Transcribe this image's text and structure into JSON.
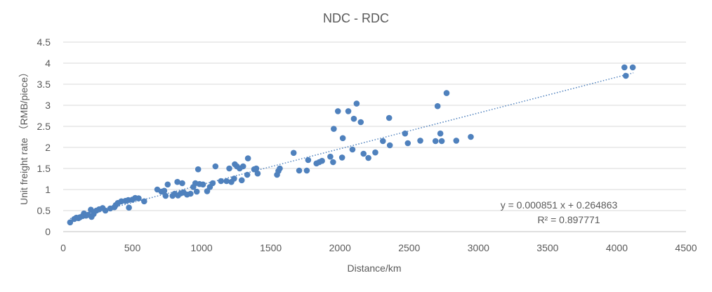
{
  "chart_data": {
    "type": "scatter",
    "title": "NDC - RDC",
    "xlabel": "Distance/km",
    "ylabel": "Unit freight rate （RMB/piece）",
    "xlim": [
      0,
      4500
    ],
    "ylim": [
      0,
      4.5
    ],
    "x_ticks": [
      "0",
      "500",
      "1000",
      "1500",
      "2000",
      "2500",
      "3000",
      "3500",
      "4000",
      "4500"
    ],
    "y_ticks": [
      "0",
      "0.5",
      "1",
      "1.5",
      "2",
      "2.5",
      "3",
      "3.5",
      "4",
      "4.5"
    ],
    "grid": "horizontal",
    "marker_color": "#4f81bd",
    "trendline": {
      "type": "linear",
      "slope": 0.000851,
      "intercept": 0.264863,
      "x_range": [
        50,
        4120
      ],
      "color": "#4f81bd",
      "style": "dotted",
      "equation": "y = 0.000851 x + 0.264863",
      "r2": "R² = 0.897771"
    },
    "series": [
      {
        "points": [
          [
            50,
            0.22
          ],
          [
            80,
            0.3
          ],
          [
            95,
            0.33
          ],
          [
            110,
            0.32
          ],
          [
            120,
            0.34
          ],
          [
            140,
            0.37
          ],
          [
            150,
            0.43
          ],
          [
            165,
            0.38
          ],
          [
            180,
            0.4
          ],
          [
            200,
            0.52
          ],
          [
            205,
            0.35
          ],
          [
            220,
            0.42
          ],
          [
            240,
            0.5
          ],
          [
            260,
            0.53
          ],
          [
            285,
            0.56
          ],
          [
            305,
            0.5
          ],
          [
            340,
            0.55
          ],
          [
            370,
            0.58
          ],
          [
            380,
            0.63
          ],
          [
            395,
            0.68
          ],
          [
            420,
            0.72
          ],
          [
            450,
            0.73
          ],
          [
            470,
            0.75
          ],
          [
            475,
            0.57
          ],
          [
            500,
            0.76
          ],
          [
            520,
            0.8
          ],
          [
            545,
            0.79
          ],
          [
            585,
            0.72
          ],
          [
            680,
            1.0
          ],
          [
            710,
            0.95
          ],
          [
            730,
            0.97
          ],
          [
            740,
            0.85
          ],
          [
            755,
            1.12
          ],
          [
            790,
            0.85
          ],
          [
            805,
            0.9
          ],
          [
            825,
            1.18
          ],
          [
            830,
            0.86
          ],
          [
            850,
            0.91
          ],
          [
            860,
            1.15
          ],
          [
            870,
            0.93
          ],
          [
            895,
            0.88
          ],
          [
            920,
            0.9
          ],
          [
            940,
            1.06
          ],
          [
            955,
            1.15
          ],
          [
            965,
            0.95
          ],
          [
            975,
            1.48
          ],
          [
            985,
            1.13
          ],
          [
            1010,
            1.12
          ],
          [
            1040,
            0.96
          ],
          [
            1060,
            1.06
          ],
          [
            1080,
            1.15
          ],
          [
            1100,
            1.55
          ],
          [
            1140,
            1.2
          ],
          [
            1180,
            1.2
          ],
          [
            1200,
            1.5
          ],
          [
            1215,
            1.18
          ],
          [
            1235,
            1.26
          ],
          [
            1240,
            1.6
          ],
          [
            1255,
            1.55
          ],
          [
            1275,
            1.5
          ],
          [
            1290,
            1.22
          ],
          [
            1300,
            1.55
          ],
          [
            1330,
            1.35
          ],
          [
            1335,
            1.74
          ],
          [
            1380,
            1.48
          ],
          [
            1395,
            1.5
          ],
          [
            1405,
            1.38
          ],
          [
            1545,
            1.35
          ],
          [
            1555,
            1.44
          ],
          [
            1565,
            1.5
          ],
          [
            1665,
            1.87
          ],
          [
            1705,
            1.45
          ],
          [
            1760,
            1.45
          ],
          [
            1770,
            1.7
          ],
          [
            1830,
            1.62
          ],
          [
            1850,
            1.65
          ],
          [
            1870,
            1.68
          ],
          [
            1930,
            1.78
          ],
          [
            1950,
            1.65
          ],
          [
            1955,
            2.44
          ],
          [
            1985,
            2.86
          ],
          [
            2015,
            1.76
          ],
          [
            2020,
            2.22
          ],
          [
            2060,
            2.86
          ],
          [
            2090,
            1.95
          ],
          [
            2100,
            2.68
          ],
          [
            2120,
            3.04
          ],
          [
            2150,
            2.6
          ],
          [
            2170,
            1.85
          ],
          [
            2205,
            1.75
          ],
          [
            2255,
            1.88
          ],
          [
            2310,
            2.15
          ],
          [
            2355,
            2.7
          ],
          [
            2360,
            2.05
          ],
          [
            2470,
            2.33
          ],
          [
            2490,
            2.1
          ],
          [
            2580,
            2.16
          ],
          [
            2690,
            2.15
          ],
          [
            2705,
            2.98
          ],
          [
            2725,
            2.33
          ],
          [
            2735,
            2.15
          ],
          [
            2770,
            3.29
          ],
          [
            2840,
            2.16
          ],
          [
            2945,
            2.25
          ],
          [
            4055,
            3.9
          ],
          [
            4065,
            3.7
          ],
          [
            4115,
            3.9
          ]
        ]
      }
    ]
  }
}
